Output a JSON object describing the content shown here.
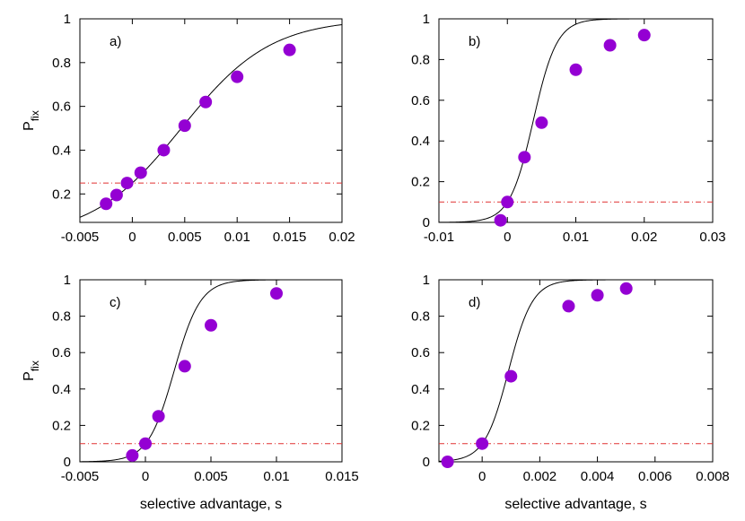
{
  "figure": {
    "ylabel_main": "P",
    "ylabel_sub": "fix",
    "xlabel": "selective advantage, s"
  },
  "chart_data": [
    {
      "type": "scatter",
      "panel_label": "a)",
      "xlim": [
        -0.005,
        0.02
      ],
      "ylim": [
        0.07,
        1.0
      ],
      "xticks": [
        "-0.005",
        "0",
        "0.005",
        "0.01",
        "0.015",
        "0.02"
      ],
      "xtick_values": [
        -0.005,
        0,
        0.005,
        0.01,
        0.015,
        0.02
      ],
      "yticks": [
        "0.2",
        "0.4",
        "0.6",
        "0.8",
        "1"
      ],
      "ytick_values": [
        0.2,
        0.4,
        0.6,
        0.8,
        1.0
      ],
      "ylabel": true,
      "xlabel": false,
      "points": [
        {
          "x": -0.0025,
          "y": 0.155
        },
        {
          "x": -0.0015,
          "y": 0.195
        },
        {
          "x": -0.0005,
          "y": 0.25
        },
        {
          "x": 0.0008,
          "y": 0.297
        },
        {
          "x": 0.003,
          "y": 0.4
        },
        {
          "x": 0.005,
          "y": 0.512
        },
        {
          "x": 0.007,
          "y": 0.62
        },
        {
          "x": 0.01,
          "y": 0.735
        },
        {
          "x": 0.015,
          "y": 0.858
        }
      ],
      "fit_curve": {
        "x0": 0,
        "p0": 0.25,
        "k": 235
      },
      "reference_line": {
        "y": 0.25,
        "color": "#e03030",
        "style": "dash-dot"
      },
      "point_color": "#9400d3",
      "curve_color": "#000000"
    },
    {
      "type": "scatter",
      "panel_label": "b)",
      "xlim": [
        -0.01,
        0.03
      ],
      "ylim": [
        0,
        1.0
      ],
      "xticks": [
        "-0.01",
        "0",
        "0.01",
        "0.02",
        "0.03"
      ],
      "xtick_values": [
        -0.01,
        0,
        0.01,
        0.02,
        0.03
      ],
      "yticks": [
        "0",
        "0.2",
        "0.4",
        "0.6",
        "0.8",
        "1"
      ],
      "ytick_values": [
        0,
        0.2,
        0.4,
        0.6,
        0.8,
        1.0
      ],
      "ylabel": false,
      "xlabel": false,
      "points": [
        {
          "x": -0.001,
          "y": 0.01
        },
        {
          "x": 0.0,
          "y": 0.1
        },
        {
          "x": 0.0025,
          "y": 0.32
        },
        {
          "x": 0.005,
          "y": 0.49
        },
        {
          "x": 0.01,
          "y": 0.75
        },
        {
          "x": 0.015,
          "y": 0.87
        },
        {
          "x": 0.02,
          "y": 0.92
        }
      ],
      "fit_curve": {
        "x0": 0,
        "p0": 0.1,
        "k": 580
      },
      "reference_line": {
        "y": 0.1,
        "color": "#e03030",
        "style": "dash-dot"
      },
      "point_color": "#9400d3",
      "curve_color": "#000000"
    },
    {
      "type": "scatter",
      "panel_label": "c)",
      "xlim": [
        -0.005,
        0.015
      ],
      "ylim": [
        0,
        1.0
      ],
      "xticks": [
        "-0.005",
        "0",
        "0.005",
        "0.01",
        "0.015"
      ],
      "xtick_values": [
        -0.005,
        0,
        0.005,
        0.01,
        0.015
      ],
      "yticks": [
        "0",
        "0.2",
        "0.4",
        "0.6",
        "0.8",
        "1"
      ],
      "ytick_values": [
        0,
        0.2,
        0.4,
        0.6,
        0.8,
        1.0
      ],
      "ylabel": true,
      "xlabel": true,
      "points": [
        {
          "x": -0.001,
          "y": 0.035
        },
        {
          "x": 0.0,
          "y": 0.1
        },
        {
          "x": 0.001,
          "y": 0.25
        },
        {
          "x": 0.003,
          "y": 0.525
        },
        {
          "x": 0.005,
          "y": 0.75
        },
        {
          "x": 0.01,
          "y": 0.925
        }
      ],
      "fit_curve": {
        "x0": 0,
        "p0": 0.1,
        "k": 1000
      },
      "reference_line": {
        "y": 0.1,
        "color": "#e03030",
        "style": "dash-dot"
      },
      "point_color": "#9400d3",
      "curve_color": "#000000"
    },
    {
      "type": "scatter",
      "panel_label": "d)",
      "xlim": [
        -0.0015,
        0.008
      ],
      "ylim": [
        0,
        1.0
      ],
      "xticks": [
        "0",
        "0.002",
        "0.004",
        "0.006",
        "0.008"
      ],
      "xtick_values": [
        0,
        0.002,
        0.004,
        0.006,
        0.008
      ],
      "yticks": [
        "0",
        "0.2",
        "0.4",
        "0.6",
        "0.8",
        "1"
      ],
      "ytick_values": [
        0,
        0.2,
        0.4,
        0.6,
        0.8,
        1.0
      ],
      "ylabel": false,
      "xlabel": true,
      "points": [
        {
          "x": -0.0012,
          "y": 0.0
        },
        {
          "x": 0.0,
          "y": 0.1
        },
        {
          "x": 0.001,
          "y": 0.47
        },
        {
          "x": 0.003,
          "y": 0.855
        },
        {
          "x": 0.004,
          "y": 0.915
        },
        {
          "x": 0.005,
          "y": 0.952
        }
      ],
      "fit_curve": {
        "x0": 0,
        "p0": 0.1,
        "k": 2400
      },
      "reference_line": {
        "y": 0.1,
        "color": "#e03030",
        "style": "dash-dot"
      },
      "point_color": "#9400d3",
      "curve_color": "#000000"
    }
  ]
}
